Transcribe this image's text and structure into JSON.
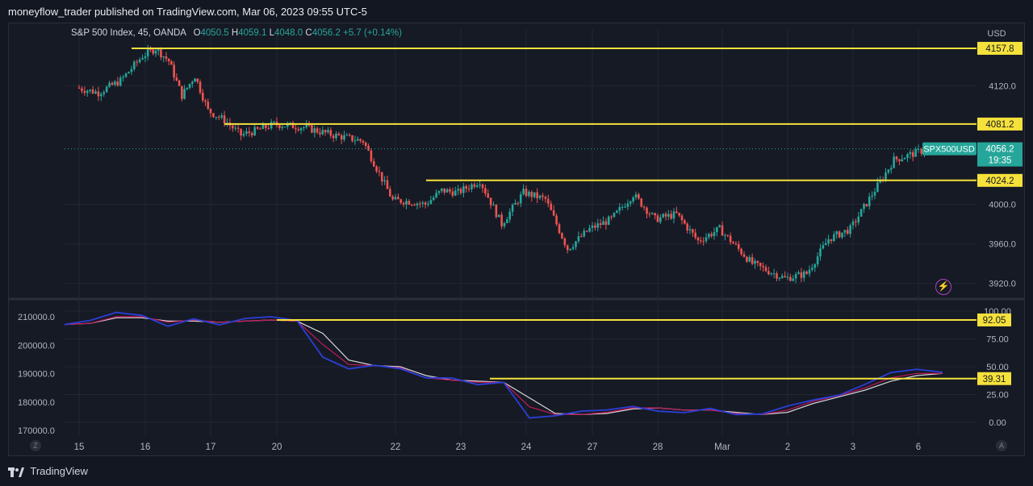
{
  "header": {
    "published": "moneyflow_trader published on TradingView.com, Mar 06, 2023 09:55 UTC-5"
  },
  "legend": {
    "symbol": "S&P 500 Index, 45, OANDA",
    "o_label": "O",
    "o": "4050.5",
    "h_label": "H",
    "h": "4059.1",
    "l_label": "L",
    "l": "4048.0",
    "c_label": "C",
    "c": "4056.2",
    "change": "+5.7 (+0.14%)"
  },
  "price_axis": {
    "currency": "USD",
    "ticks": [
      "4120.0",
      "4000.0",
      "3960.0",
      "3920.0"
    ]
  },
  "price_tags": {
    "symbol": "SPX500USD",
    "last": "4056.2",
    "countdown": "19:35",
    "levels": [
      "4157.8",
      "4081.2",
      "4024.2"
    ]
  },
  "osc_axis": {
    "ticks": [
      "100.00",
      "75.00",
      "50.00",
      "25.00",
      "0.00"
    ],
    "levels": [
      "92.05",
      "39.31"
    ]
  },
  "osc_left_axis": [
    "210000.0",
    "200000.0",
    "190000.0",
    "180000.0",
    "170000.0"
  ],
  "time_axis": [
    "15",
    "16",
    "17",
    "20",
    "22",
    "23",
    "24",
    "27",
    "28",
    "Mar",
    "2",
    "3",
    "6"
  ],
  "footer": {
    "brand": "TradingView"
  },
  "corners": {
    "left": "Z",
    "right": "A"
  },
  "colors": {
    "up": "#26a69a",
    "down": "#ef5350",
    "level": "#f5e13b",
    "background": "#161a25",
    "osc_white": "#d6d6d6",
    "osc_red": "#c2185b",
    "osc_blue": "#2b3fd6"
  },
  "chart_data": [
    {
      "type": "candlestick",
      "title": "S&P 500 Index, 45, OANDA",
      "ylabel": "USD",
      "x": [
        "15",
        "16",
        "17",
        "20",
        "22",
        "23",
        "24",
        "27",
        "28",
        "Mar",
        "2",
        "3",
        "6"
      ],
      "ylim": [
        3905,
        4170
      ],
      "close_path": [
        [
          "15",
          4118
        ],
        [
          "15",
          4113
        ],
        [
          "15",
          4125
        ],
        [
          "16",
          4150
        ],
        [
          "16",
          4157.8
        ],
        [
          "16",
          4145
        ],
        [
          "16",
          4110
        ],
        [
          "16",
          4130
        ],
        [
          "17",
          4095
        ],
        [
          "17",
          4085
        ],
        [
          "17",
          4070
        ],
        [
          "17",
          4075
        ],
        [
          "20",
          4081
        ],
        [
          "20",
          4078
        ],
        [
          "20",
          4070
        ],
        [
          "20",
          4064
        ],
        [
          "22",
          4004
        ],
        [
          "22",
          4003
        ],
        [
          "22",
          4000
        ],
        [
          "22",
          4014
        ],
        [
          "23",
          4012
        ],
        [
          "23",
          4024
        ],
        [
          "23",
          3980
        ],
        [
          "24",
          4012
        ],
        [
          "24",
          4005
        ],
        [
          "24",
          3955
        ],
        [
          "27",
          3975
        ],
        [
          "27",
          3985
        ],
        [
          "27",
          4010
        ],
        [
          "28",
          3985
        ],
        [
          "28",
          3990
        ],
        [
          "28",
          3963
        ],
        [
          "Mar",
          3975
        ],
        [
          "Mar",
          3940
        ],
        [
          "2",
          3925
        ],
        [
          "2",
          3930
        ],
        [
          "2",
          3965
        ],
        [
          "3",
          3975
        ],
        [
          "3",
          4010
        ],
        [
          "3",
          4045
        ],
        [
          "6",
          4052
        ],
        [
          "6",
          4056.2
        ]
      ],
      "levels": [
        4157.8,
        4081.2,
        4024.2
      ],
      "last": 4056.2
    },
    {
      "type": "line",
      "title": "",
      "ylim": [
        0,
        100
      ],
      "series": [
        {
          "values": [
            88,
            90,
            97,
            96,
            88,
            95,
            88,
            92,
            93,
            91,
            60,
            50,
            52,
            47,
            38,
            39,
            35,
            38,
            5,
            5,
            8,
            10,
            15,
            12,
            10,
            12,
            5,
            6,
            15,
            22,
            26,
            34,
            43,
            46,
            45
          ]
        },
        {
          "values": [
            88,
            89,
            95,
            95,
            90,
            92,
            90,
            91,
            92,
            91,
            70,
            52,
            51,
            49,
            40,
            38,
            36,
            36,
            14,
            7,
            7,
            9,
            13,
            13,
            11,
            11,
            8,
            7,
            11,
            19,
            24,
            31,
            40,
            44,
            44
          ]
        },
        {
          "values": [
            88,
            89,
            94,
            94,
            91,
            91,
            90,
            91,
            92,
            91,
            80,
            56,
            51,
            50,
            42,
            38,
            37,
            36,
            22,
            8,
            7,
            8,
            12,
            13,
            11,
            11,
            9,
            7,
            9,
            17,
            23,
            29,
            37,
            42,
            44
          ]
        }
      ],
      "levels": [
        92.05,
        39.31
      ]
    }
  ]
}
